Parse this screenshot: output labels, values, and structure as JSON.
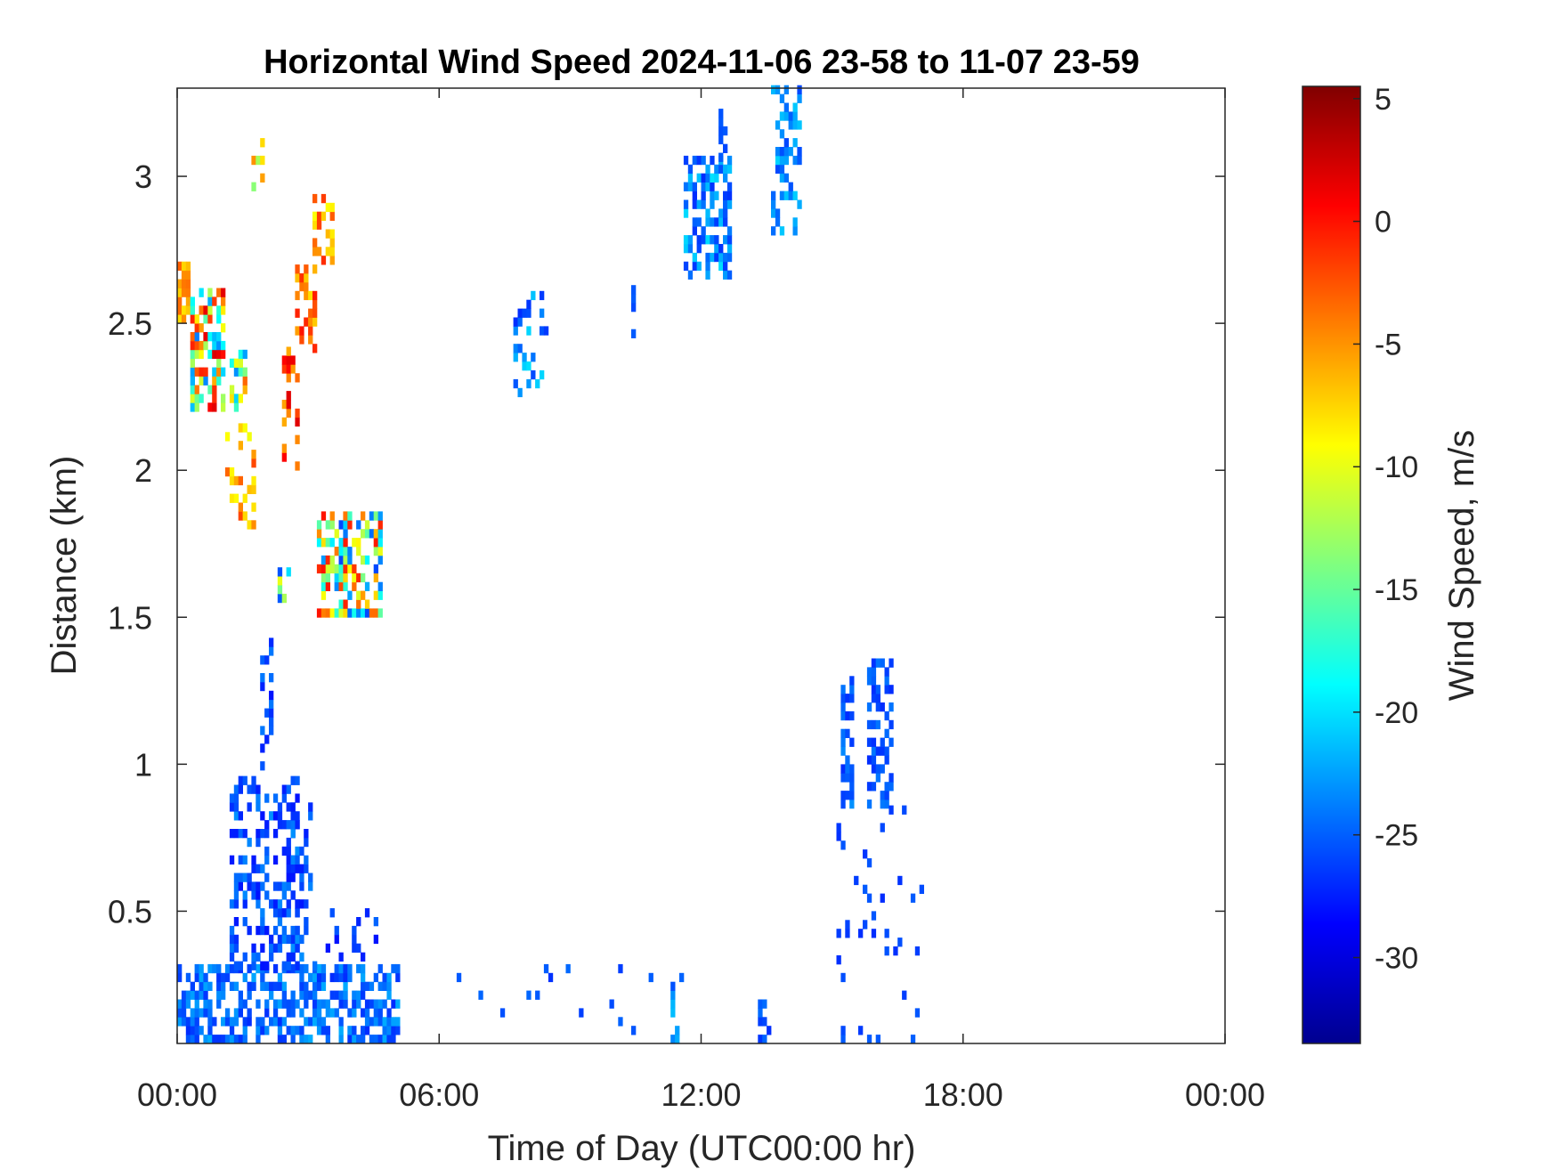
{
  "chart_data": {
    "type": "heatmap",
    "title": "Horizontal Wind Speed 2024-11-06 23-58 to 11-07 23-59",
    "xlabel": "Time of Day (UTC00:00 hr)",
    "ylabel": "Distance (km)",
    "colorbar_label": "Wind Speed, m/s",
    "colormap": "jet",
    "xlim": [
      0,
      24
    ],
    "ylim": [
      0.05,
      3.3
    ],
    "clim": [
      -33.5,
      5.5
    ],
    "x_ticks": [
      0,
      6,
      12,
      18,
      24
    ],
    "x_tick_labels": [
      "00:00",
      "06:00",
      "12:00",
      "18:00",
      "00:00"
    ],
    "y_ticks": [
      0.5,
      1,
      1.5,
      2,
      2.5,
      3
    ],
    "y_tick_labels": [
      "0.5",
      "1",
      "1.5",
      "2",
      "2.5",
      "3"
    ],
    "colorbar_ticks": [
      5,
      0,
      -5,
      -10,
      -15,
      -20,
      -25,
      -30
    ],
    "colorbar_tick_labels": [
      "5",
      "0",
      "-5",
      "-10",
      "-15",
      "-20",
      "-25",
      "-30"
    ],
    "grid": false,
    "cell_width_hr": 0.1,
    "cell_height_km": 0.03,
    "clusters": [
      {
        "t": [
          0.0,
          5.0
        ],
        "h": [
          0.05,
          0.3
        ],
        "v": [
          -27,
          -22
        ],
        "density": 0.6
      },
      {
        "t": [
          1.2,
          2.8
        ],
        "h": [
          0.3,
          0.95
        ],
        "v": [
          -28,
          -23
        ],
        "density": 0.4
      },
      {
        "t": [
          1.9,
          2.2
        ],
        "h": [
          0.95,
          1.45
        ],
        "v": [
          -28,
          -24
        ],
        "density": 0.3
      },
      {
        "t": [
          2.5,
          3.1
        ],
        "h": [
          0.3,
          0.85
        ],
        "v": [
          -28,
          -23
        ],
        "density": 0.35
      },
      {
        "t": [
          3.1,
          4.5
        ],
        "h": [
          0.3,
          0.5
        ],
        "v": [
          -28,
          -24
        ],
        "density": 0.15
      },
      {
        "t": [
          0.0,
          0.3
        ],
        "h": [
          2.5,
          2.7
        ],
        "v": [
          -8,
          -2
        ],
        "density": 0.7
      },
      {
        "t": [
          0.3,
          1.0
        ],
        "h": [
          2.2,
          2.6
        ],
        "v": [
          -24,
          2
        ],
        "density": 0.55
      },
      {
        "t": [
          1.2,
          1.6
        ],
        "h": [
          2.2,
          2.4
        ],
        "v": [
          -24,
          -3
        ],
        "density": 0.55
      },
      {
        "t": [
          1.1,
          1.8
        ],
        "h": [
          1.8,
          2.15
        ],
        "v": [
          -10,
          0
        ],
        "density": 0.3
      },
      {
        "t": [
          2.4,
          2.8
        ],
        "h": [
          2.0,
          2.4
        ],
        "v": [
          -6,
          2
        ],
        "density": 0.4
      },
      {
        "t": [
          2.7,
          3.2
        ],
        "h": [
          2.4,
          2.67
        ],
        "v": [
          -8,
          0
        ],
        "density": 0.5
      },
      {
        "t": [
          3.1,
          3.6
        ],
        "h": [
          2.7,
          2.93
        ],
        "v": [
          -10,
          -1
        ],
        "density": 0.5
      },
      {
        "t": [
          1.7,
          2.0
        ],
        "h": [
          2.95,
          3.1
        ],
        "v": [
          -15,
          0
        ],
        "density": 0.5
      },
      {
        "t": [
          3.2,
          4.6
        ],
        "h": [
          1.5,
          1.85
        ],
        "v": [
          -26,
          0
        ],
        "density": 0.55
      },
      {
        "t": [
          2.3,
          2.6
        ],
        "h": [
          1.55,
          1.65
        ],
        "v": [
          -26,
          -4
        ],
        "density": 0.5
      },
      {
        "t": [
          7.7,
          8.4
        ],
        "h": [
          2.25,
          2.6
        ],
        "v": [
          -27,
          -20
        ],
        "density": 0.3
      },
      {
        "t": [
          10.4,
          10.5
        ],
        "h": [
          2.45,
          2.62
        ],
        "v": [
          -26,
          -25
        ],
        "density": 0.6
      },
      {
        "t": [
          11.6,
          12.6
        ],
        "h": [
          2.65,
          3.05
        ],
        "v": [
          -27,
          -20
        ],
        "density": 0.5
      },
      {
        "t": [
          12.4,
          12.6
        ],
        "h": [
          3.05,
          3.2
        ],
        "v": [
          -26,
          -25
        ],
        "density": 0.4
      },
      {
        "t": [
          13.6,
          14.2
        ],
        "h": [
          2.8,
          3.3
        ],
        "v": [
          -26,
          -20
        ],
        "density": 0.45
      },
      {
        "t": [
          15.2,
          15.4
        ],
        "h": [
          0.85,
          1.3
        ],
        "v": [
          -27,
          -23
        ],
        "density": 0.55
      },
      {
        "t": [
          15.8,
          16.4
        ],
        "h": [
          0.85,
          1.35
        ],
        "v": [
          -27,
          -24
        ],
        "density": 0.45
      },
      {
        "t": [
          15.1,
          17.2
        ],
        "h": [
          0.05,
          0.85
        ],
        "v": [
          -27,
          -25
        ],
        "density": 0.07
      },
      {
        "t": [
          13.2,
          13.6
        ],
        "h": [
          0.05,
          0.2
        ],
        "v": [
          -27,
          -24
        ],
        "density": 0.4
      },
      {
        "t": [
          11.3,
          11.5
        ],
        "h": [
          0.05,
          0.25
        ],
        "v": [
          -24,
          -21
        ],
        "density": 0.45
      },
      {
        "t": [
          5.0,
          12.0
        ],
        "h": [
          0.05,
          0.3
        ],
        "v": [
          -27,
          -24
        ],
        "density": 0.03
      }
    ]
  }
}
